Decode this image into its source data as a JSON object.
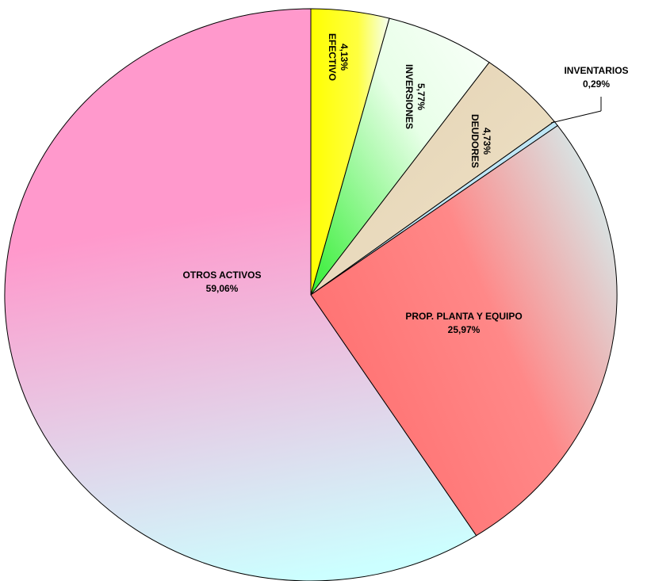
{
  "chart_data": {
    "type": "pie",
    "categories": [
      "EFECTIVO",
      "INVERSIONES",
      "DEUDORES",
      "INVENTARIOS",
      "PROP. PLANTA Y EQUIPO",
      "OTROS ACTIVOS"
    ],
    "values": [
      4.13,
      5.77,
      4.73,
      0.29,
      25.97,
      59.06
    ],
    "value_labels": [
      "4,13%",
      "5,77%",
      "4,73%",
      "0,29%",
      "25,97%",
      "59,06%"
    ],
    "colors": [
      "#ffff00",
      "#33ee33",
      "#e3d2b2",
      "#bfe6f5",
      "#ff7070",
      "#ff99cc"
    ]
  }
}
